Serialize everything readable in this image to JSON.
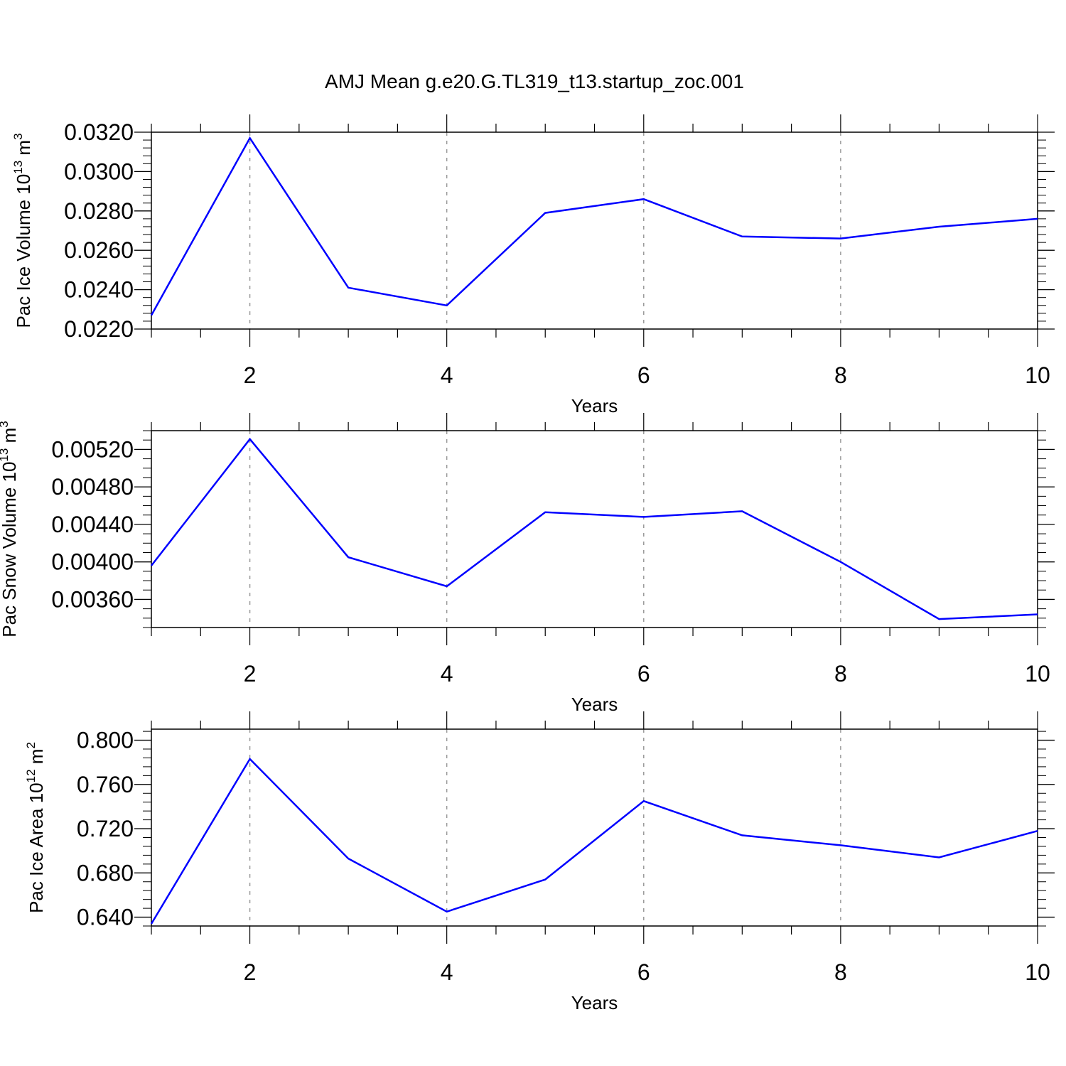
{
  "title": "AMJ Mean g.e20.G.TL319_t13.startup_zoc.001",
  "colors": {
    "line": "#0000ff",
    "axis": "#000000",
    "grid": "#999999"
  },
  "chart_data": [
    {
      "type": "line",
      "xlabel": "Years",
      "ylabel": {
        "text": "Pac Ice Volume 10",
        "exp": "13",
        "unit": " m",
        "unit_exp": "3"
      },
      "xlim": [
        1,
        10
      ],
      "ylim": [
        0.022,
        0.032
      ],
      "xticks": [
        2,
        4,
        6,
        8,
        10
      ],
      "xtick_labels": [
        "2",
        "4",
        "6",
        "8",
        "10"
      ],
      "yticks": [
        0.022,
        0.024,
        0.026,
        0.028,
        0.03,
        0.032
      ],
      "ytick_labels": [
        "0.0220",
        "0.0240",
        "0.0260",
        "0.0280",
        "0.0300",
        "0.0320"
      ],
      "y_minor_step": 0.0004,
      "grid": "vertical-dashed",
      "series": [
        {
          "x": [
            1,
            2,
            3,
            4,
            5,
            6,
            7,
            8,
            9,
            10
          ],
          "values": [
            0.0227,
            0.0317,
            0.0241,
            0.0232,
            0.0279,
            0.0286,
            0.0267,
            0.0266,
            0.0272,
            0.0276
          ]
        }
      ]
    },
    {
      "type": "line",
      "xlabel": "Years",
      "ylabel": {
        "text": "Pac Snow Volume 10",
        "exp": "13",
        "unit": " m",
        "unit_exp": "3"
      },
      "xlim": [
        1,
        10
      ],
      "ylim": [
        0.0033,
        0.0054
      ],
      "xticks": [
        2,
        4,
        6,
        8,
        10
      ],
      "xtick_labels": [
        "2",
        "4",
        "6",
        "8",
        "10"
      ],
      "yticks": [
        0.0036,
        0.004,
        0.0044,
        0.0048,
        0.0052
      ],
      "ytick_labels": [
        "0.00360",
        "0.00400",
        "0.00440",
        "0.00480",
        "0.00520"
      ],
      "y_minor_step": 0.0001,
      "grid": "vertical-dashed",
      "series": [
        {
          "x": [
            1,
            2,
            3,
            4,
            5,
            6,
            7,
            8,
            9,
            10
          ],
          "values": [
            0.00396,
            0.00531,
            0.00405,
            0.00374,
            0.00453,
            0.00448,
            0.00454,
            0.004,
            0.00339,
            0.00344
          ]
        }
      ]
    },
    {
      "type": "line",
      "xlabel": "Years",
      "ylabel": {
        "text": "Pac Ice Area 10",
        "exp": "12",
        "unit": " m",
        "unit_exp": "2"
      },
      "xlim": [
        1,
        10
      ],
      "ylim": [
        0.632,
        0.81
      ],
      "xticks": [
        2,
        4,
        6,
        8,
        10
      ],
      "xtick_labels": [
        "2",
        "4",
        "6",
        "8",
        "10"
      ],
      "yticks": [
        0.64,
        0.68,
        0.72,
        0.76,
        0.8
      ],
      "ytick_labels": [
        "0.640",
        "0.680",
        "0.720",
        "0.760",
        "0.800"
      ],
      "y_minor_step": 0.008,
      "grid": "vertical-dashed",
      "series": [
        {
          "x": [
            1,
            2,
            3,
            4,
            5,
            6,
            7,
            8,
            9,
            10
          ],
          "values": [
            0.634,
            0.783,
            0.693,
            0.645,
            0.674,
            0.745,
            0.714,
            0.705,
            0.694,
            0.718
          ]
        }
      ]
    }
  ]
}
